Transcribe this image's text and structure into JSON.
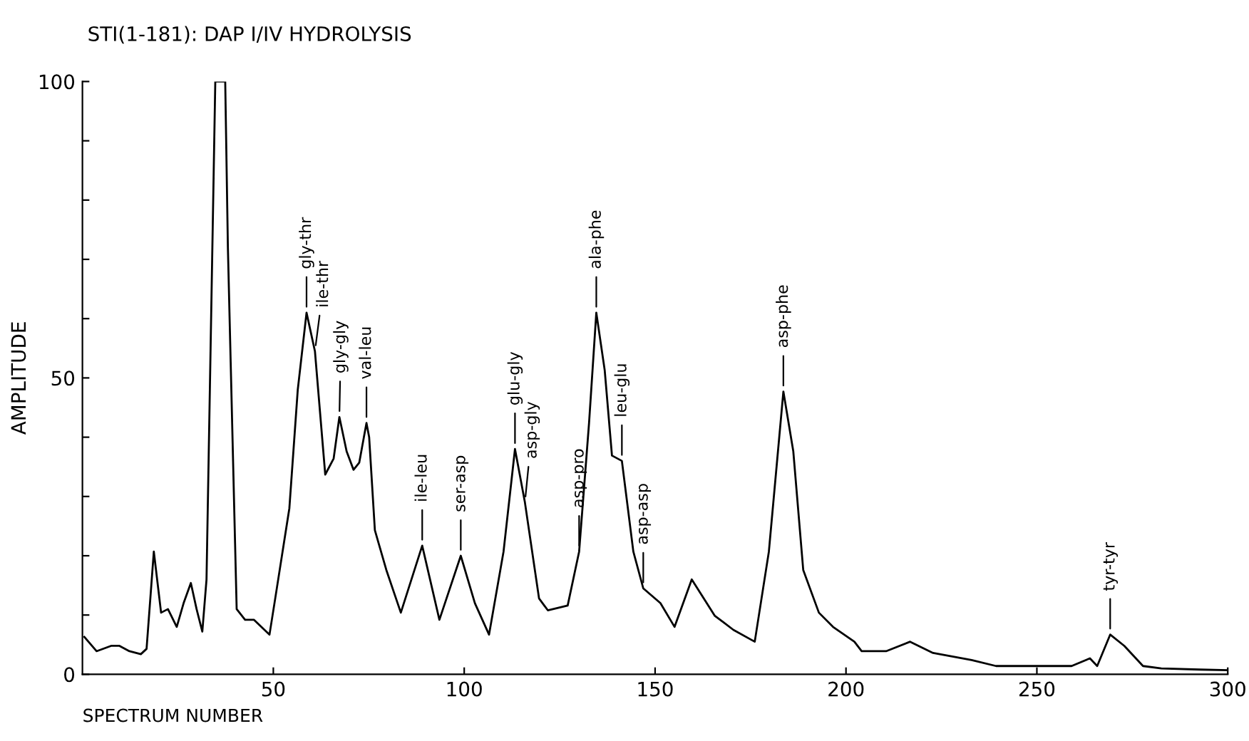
{
  "chart_data": {
    "type": "line",
    "title": "STI(1-181): DAP I/IV HYDROLYSIS",
    "xlabel": "SPECTRUM NUMBER",
    "ylabel": "AMPLITUDE",
    "xlim": [
      0,
      300
    ],
    "ylim": [
      0,
      100
    ],
    "xticks": [
      50,
      100,
      150,
      200,
      250,
      300
    ],
    "yticks": [
      0,
      {
        "value": 10,
        "label": null
      },
      {
        "value": 20,
        "label": null
      },
      {
        "value": 30,
        "label": null
      },
      {
        "value": 40,
        "label": null
      },
      50,
      {
        "value": 60,
        "label": null
      },
      {
        "value": 70,
        "label": null
      },
      {
        "value": 80,
        "label": null
      },
      {
        "value": 90,
        "label": null
      },
      100
    ],
    "grid": false,
    "legend": false,
    "marker": "none",
    "line_style": "solid",
    "series": [
      {
        "color": "#000000",
        "x": [
          0.5,
          3.7,
          7.5,
          9.7,
          12.3,
          15.3,
          16.8,
          18.7,
          20.6,
          22.4,
          24.7,
          26.5,
          28.4,
          29.9,
          31.4,
          32.5,
          34.8,
          37.4,
          38.1,
          40.4,
          42.6,
          44.9,
          49.0,
          50.5,
          54.2,
          56.4,
          58.7,
          60.9,
          63.6,
          65.8,
          67.3,
          69.2,
          71.0,
          72.5,
          74.4,
          75.1,
          76.6,
          79.6,
          83.4,
          89.0,
          93.5,
          99.1,
          102.8,
          106.5,
          110.3,
          113.3,
          115.9,
          119.6,
          121.9,
          127.1,
          130.1,
          132.7,
          134.6,
          136.8,
          138.7,
          141.3,
          144.3,
          146.9,
          151.4,
          155.1,
          159.6,
          165.6,
          170.5,
          176.1,
          179.8,
          183.6,
          186.2,
          188.8,
          192.9,
          196.6,
          202.2,
          204.1,
          210.5,
          216.8,
          222.8,
          232.9,
          239.3,
          251.6,
          259.1,
          263.9,
          265.8,
          269.2,
          272.9,
          277.8,
          282.6,
          292.7,
          300
        ],
        "values": [
          6.3,
          3.9,
          4.8,
          4.8,
          3.9,
          3.4,
          4.3,
          20.7,
          10.4,
          11,
          8,
          12,
          15.4,
          11,
          7.2,
          16,
          100,
          100,
          72,
          11,
          9.2,
          9.2,
          6.7,
          12.8,
          28,
          48,
          61,
          54.5,
          33.7,
          36.4,
          43.4,
          37.6,
          34.5,
          35.7,
          42.4,
          40,
          24.3,
          17.6,
          10.4,
          21.7,
          9.2,
          20,
          12,
          6.7,
          20.7,
          38,
          29,
          12.8,
          10.8,
          11.6,
          20.7,
          42.4,
          61,
          51.3,
          36.9,
          36,
          20.7,
          14.5,
          12,
          8,
          16,
          9.9,
          7.5,
          5.5,
          20.7,
          47.7,
          37.6,
          17.6,
          10.4,
          8,
          5.5,
          3.9,
          3.9,
          5.5,
          3.6,
          2.4,
          1.4,
          1.4,
          1.4,
          2.7,
          1.4,
          6.7,
          4.8,
          1.4,
          1,
          0.8,
          0.7
        ]
      }
    ],
    "annotations": [
      {
        "text": "gly-thr",
        "x": 58.7,
        "y": 61
      },
      {
        "text": "ile-thr",
        "x": 60.9,
        "y": 54.5
      },
      {
        "text": "gly-gly",
        "x": 67.3,
        "y": 43.4
      },
      {
        "text": "val-leu",
        "x": 74.4,
        "y": 42.4
      },
      {
        "text": "ile-leu",
        "x": 89.0,
        "y": 21.7
      },
      {
        "text": "ser-asp",
        "x": 99.1,
        "y": 20
      },
      {
        "text": "glu-gly",
        "x": 113.3,
        "y": 38
      },
      {
        "text": "asp-gly",
        "x": 115.9,
        "y": 29
      },
      {
        "text": "asp-pro",
        "x": 130.1,
        "y": 20.7
      },
      {
        "text": "ala-phe",
        "x": 134.6,
        "y": 61
      },
      {
        "text": "leu-glu",
        "x": 141.3,
        "y": 36
      },
      {
        "text": "asp-asp",
        "x": 146.9,
        "y": 14.5
      },
      {
        "text": "asp-phe",
        "x": 183.6,
        "y": 47.7
      },
      {
        "text": "tyr-tyr",
        "x": 269.2,
        "y": 6.7
      }
    ]
  }
}
